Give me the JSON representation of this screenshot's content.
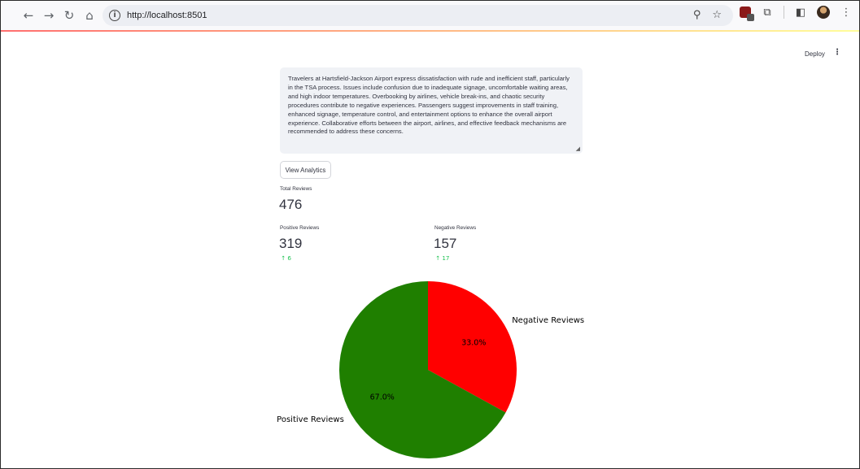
{
  "browser": {
    "url": "http://localhost:8501",
    "nav_icons": [
      "back-arrow-icon",
      "forward-arrow-icon",
      "reload-icon",
      "home-icon"
    ]
  },
  "app": {
    "deploy_label": "Deploy",
    "summary_text": "Travelers at Hartsfield-Jackson Airport express dissatisfaction with rude and inefficient staff, particularly in the TSA process. Issues include confusion due to inadequate signage, uncomfortable waiting areas, and high indoor temperatures. Overbooking by airlines, vehicle break-ins, and chaotic security procedures contribute to negative experiences. Passengers suggest improvements in staff training, enhanced signage, temperature control, and entertainment options to enhance the overall airport experience. Collaborative efforts between the airport, airlines, and effective feedback mechanisms are recommended to address these concerns.",
    "view_analytics_label": "View Analytics",
    "total": {
      "label": "Total Reviews",
      "value": "476"
    },
    "positive": {
      "label": "Positive Reviews",
      "value": "319",
      "delta": "6"
    },
    "negative": {
      "label": "Negative Reviews",
      "value": "157",
      "delta": "17"
    }
  },
  "colors": {
    "positive": "#1f7f00",
    "negative": "#ff0000",
    "delta": "#21c354"
  },
  "chart_data": {
    "type": "pie",
    "labels": [
      "Negative Reviews",
      "Positive Reviews"
    ],
    "values": [
      33.0,
      67.0
    ],
    "value_labels": [
      "33.0%",
      "67.0%"
    ],
    "start_angle_deg": 90,
    "direction": "clockwise",
    "legend": "none"
  }
}
